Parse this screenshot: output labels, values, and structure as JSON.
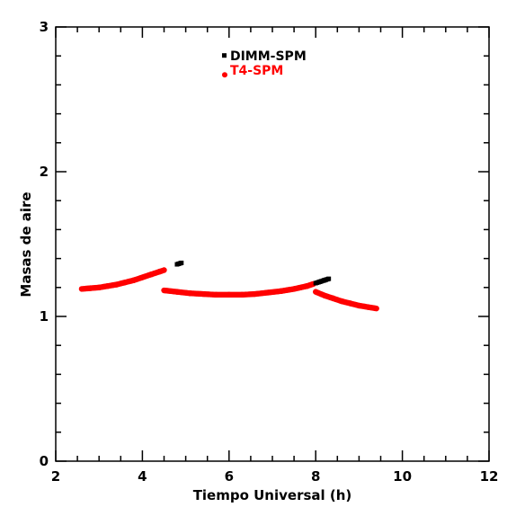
{
  "chart_data": {
    "type": "scatter",
    "xlabel": "Tiempo Universal (h)",
    "ylabel": "Masas de aire",
    "xlim": [
      2,
      12
    ],
    "ylim": [
      0,
      3
    ],
    "xticks": [
      2,
      4,
      6,
      8,
      10,
      12
    ],
    "yticks": [
      0,
      1,
      2,
      3
    ],
    "grid": false,
    "legend": "top-center",
    "series": [
      {
        "name": "DIMM-SPM",
        "color": "#000000",
        "marker": "square",
        "segments": [
          {
            "x": [
              4.8,
              4.9
            ],
            "y": [
              1.36,
              1.37
            ]
          },
          {
            "x": [
              8.0,
              8.1,
              8.2,
              8.3
            ],
            "y": [
              1.23,
              1.24,
              1.25,
              1.26
            ]
          }
        ]
      },
      {
        "name": "T4-SPM",
        "color": "#ff0000",
        "marker": "circle",
        "segments": [
          {
            "x": [
              2.6,
              2.8,
              3.0,
              3.2,
              3.4,
              3.6,
              3.8,
              4.0,
              4.2,
              4.4,
              4.5
            ],
            "y": [
              1.19,
              1.195,
              1.2,
              1.21,
              1.22,
              1.235,
              1.25,
              1.27,
              1.29,
              1.31,
              1.32
            ]
          },
          {
            "x": [
              4.5,
              4.8,
              5.1,
              5.4,
              5.7,
              6.0,
              6.3,
              6.6,
              6.9,
              7.2,
              7.5,
              7.8,
              7.95
            ],
            "y": [
              1.18,
              1.17,
              1.16,
              1.155,
              1.15,
              1.15,
              1.15,
              1.155,
              1.165,
              1.175,
              1.19,
              1.21,
              1.225
            ]
          },
          {
            "x": [
              8.0,
              8.2,
              8.4,
              8.6,
              8.8,
              9.0,
              9.2,
              9.4
            ],
            "y": [
              1.17,
              1.145,
              1.125,
              1.105,
              1.09,
              1.075,
              1.065,
              1.055
            ]
          }
        ]
      }
    ]
  }
}
